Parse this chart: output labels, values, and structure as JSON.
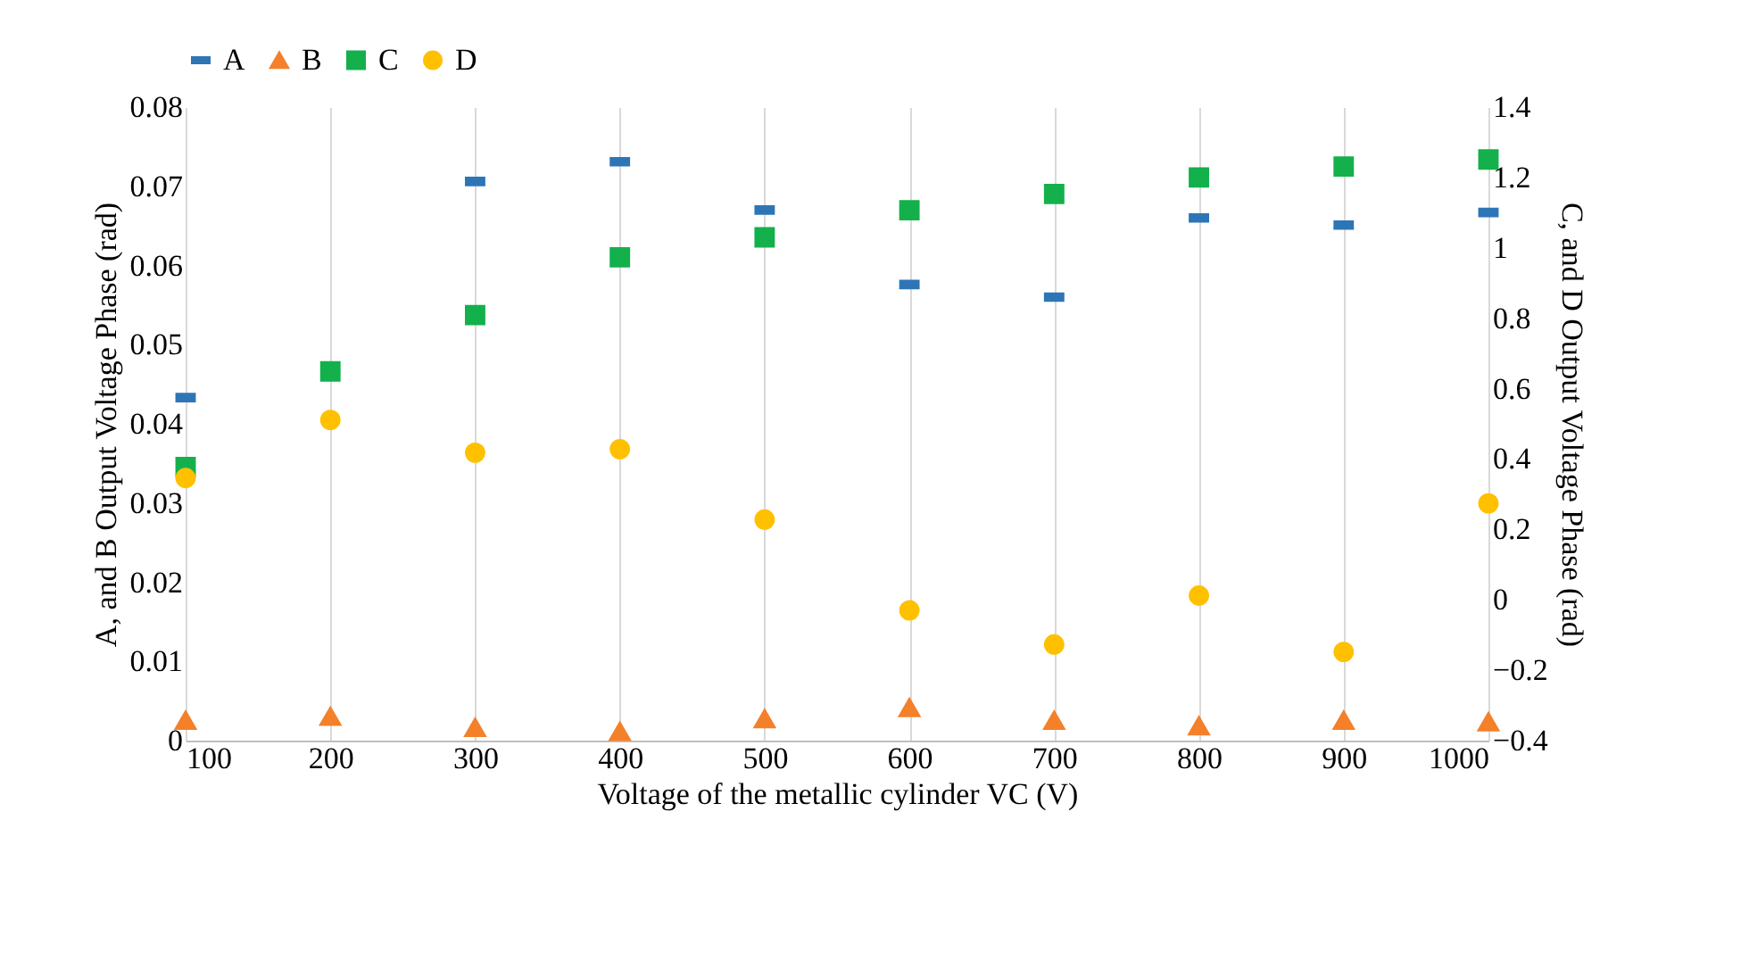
{
  "chart_data": {
    "type": "scatter",
    "xlabel": "Voltage of the metallic cylinder VC (V)",
    "ylabel": "A, and B Output Voltage Phase (rad)",
    "y2label": "C, and D Output Voltage Phase (rad)",
    "x": [
      100,
      200,
      300,
      400,
      500,
      600,
      700,
      800,
      900,
      1000
    ],
    "series": [
      {
        "name": "A",
        "color": "#2e75b6",
        "values": [
          0.0433,
          null,
          0.0706,
          0.0731,
          0.067,
          0.0576,
          0.056,
          0.066,
          0.0651,
          0.0667
        ]
      },
      {
        "name": "B",
        "color": "#f4802a",
        "marker": "triangle",
        "values": [
          0.0025,
          0.003,
          0.0016,
          0.0011,
          0.0027,
          0.0041,
          0.0025,
          0.0018,
          0.0025,
          0.0023
        ]
      },
      {
        "name": "C",
        "color": "#13b04c",
        "marker": "square",
        "axis": "y2",
        "values": [
          0.377,
          0.649,
          0.809,
          0.973,
          1.03,
          1.107,
          1.153,
          1.2,
          1.231,
          1.251
        ]
      },
      {
        "name": "D",
        "color": "#ffc000",
        "marker": "circle",
        "axis": "y2",
        "values": [
          0.346,
          0.511,
          0.418,
          0.428,
          0.228,
          -0.03,
          -0.127,
          0.012,
          -0.148,
          0.274
        ]
      }
    ],
    "xlim": [
      100,
      1000
    ],
    "xticks": [
      100,
      200,
      300,
      400,
      500,
      600,
      700,
      800,
      900,
      1000
    ],
    "ylim": [
      0,
      0.08
    ],
    "yticks": [
      0,
      0.01,
      0.02,
      0.03,
      0.04,
      0.05,
      0.06,
      0.07,
      0.08
    ],
    "y2lim": [
      -0.4,
      1.4
    ],
    "y2ticks": [
      -0.4,
      -0.2,
      0,
      0.2,
      0.4,
      0.6,
      0.8,
      1,
      1.2,
      1.4
    ],
    "grid": "x",
    "legend": "top"
  }
}
